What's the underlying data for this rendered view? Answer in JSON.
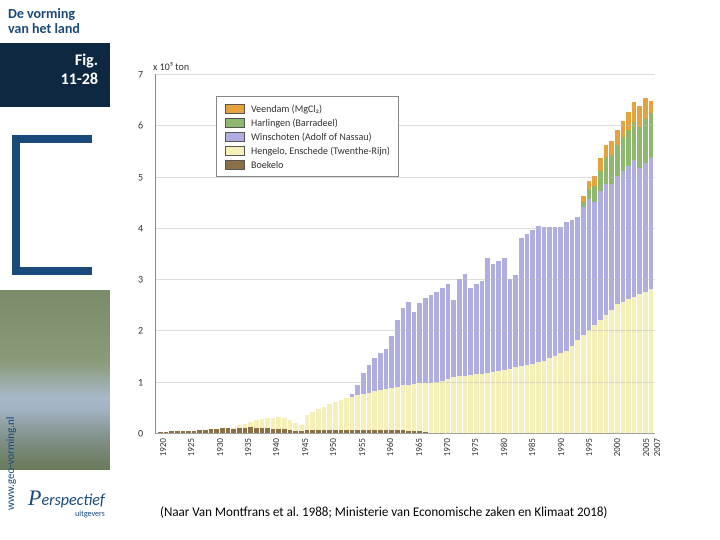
{
  "sidebar": {
    "header_line1": "De vorming",
    "header_line2": "van het land",
    "fig_label_line1": "Fig.",
    "fig_label_line2": "11-28",
    "url": "www.geo-vorming.nl",
    "logo_text": "erspectief",
    "logo_cap": "P",
    "logo_sub": "uitgevers"
  },
  "caption": "(Naar Van Montfrans et al. 1988; Ministerie van Economische zaken en Klimaat 2018)",
  "chart": {
    "type": "stacked-bar",
    "y_axis_label": "x 10⁵ ton",
    "ylim": [
      0,
      7
    ],
    "yticks": [
      0,
      1,
      2,
      3,
      4,
      5,
      6,
      7
    ],
    "x_start": 1920,
    "x_end": 2007,
    "xticks": [
      1920,
      1925,
      1930,
      1935,
      1940,
      1945,
      1950,
      1955,
      1960,
      1965,
      1970,
      1975,
      1980,
      1985,
      1990,
      1995,
      2000,
      2005,
      2007
    ],
    "colors": {
      "veendam": "#e6a23c",
      "harlingen": "#8fb86f",
      "winschoten": "#b0aee0",
      "hengelo": "#f5f0b8",
      "boekelo": "#8b6f47",
      "background": "#ffffff",
      "grid": "#bbbbbb",
      "axis": "#888888"
    },
    "series": [
      {
        "key": "veendam",
        "label": "Veendam (MgCl₂)"
      },
      {
        "key": "harlingen",
        "label": "Harlingen (Barradeel)"
      },
      {
        "key": "winschoten",
        "label": "Winschoten (Adolf of Nassau)"
      },
      {
        "key": "hengelo",
        "label": "Hengelo, Enschede (Twenthe-Rijn)"
      },
      {
        "key": "boekelo",
        "label": "Boekelo"
      }
    ],
    "data": [
      {
        "y": 1920,
        "b": 0.02,
        "h": 0,
        "w": 0,
        "ha": 0,
        "v": 0
      },
      {
        "y": 1921,
        "b": 0.02,
        "h": 0,
        "w": 0,
        "ha": 0,
        "v": 0
      },
      {
        "y": 1922,
        "b": 0.03,
        "h": 0,
        "w": 0,
        "ha": 0,
        "v": 0
      },
      {
        "y": 1923,
        "b": 0.03,
        "h": 0,
        "w": 0,
        "ha": 0,
        "v": 0
      },
      {
        "y": 1924,
        "b": 0.03,
        "h": 0,
        "w": 0,
        "ha": 0,
        "v": 0
      },
      {
        "y": 1925,
        "b": 0.04,
        "h": 0,
        "w": 0,
        "ha": 0,
        "v": 0
      },
      {
        "y": 1926,
        "b": 0.04,
        "h": 0,
        "w": 0,
        "ha": 0,
        "v": 0
      },
      {
        "y": 1927,
        "b": 0.05,
        "h": 0,
        "w": 0,
        "ha": 0,
        "v": 0
      },
      {
        "y": 1928,
        "b": 0.06,
        "h": 0,
        "w": 0,
        "ha": 0,
        "v": 0
      },
      {
        "y": 1929,
        "b": 0.07,
        "h": 0,
        "w": 0,
        "ha": 0,
        "v": 0
      },
      {
        "y": 1930,
        "b": 0.08,
        "h": 0,
        "w": 0,
        "ha": 0,
        "v": 0
      },
      {
        "y": 1931,
        "b": 0.09,
        "h": 0,
        "w": 0,
        "ha": 0,
        "v": 0
      },
      {
        "y": 1932,
        "b": 0.1,
        "h": 0,
        "w": 0,
        "ha": 0,
        "v": 0
      },
      {
        "y": 1933,
        "b": 0.08,
        "h": 0.02,
        "w": 0,
        "ha": 0,
        "v": 0
      },
      {
        "y": 1934,
        "b": 0.1,
        "h": 0.05,
        "w": 0,
        "ha": 0,
        "v": 0
      },
      {
        "y": 1935,
        "b": 0.1,
        "h": 0.08,
        "w": 0,
        "ha": 0,
        "v": 0
      },
      {
        "y": 1936,
        "b": 0.12,
        "h": 0.1,
        "w": 0,
        "ha": 0,
        "v": 0
      },
      {
        "y": 1937,
        "b": 0.1,
        "h": 0.15,
        "w": 0,
        "ha": 0,
        "v": 0
      },
      {
        "y": 1938,
        "b": 0.1,
        "h": 0.18,
        "w": 0,
        "ha": 0,
        "v": 0
      },
      {
        "y": 1939,
        "b": 0.1,
        "h": 0.2,
        "w": 0,
        "ha": 0,
        "v": 0
      },
      {
        "y": 1940,
        "b": 0.08,
        "h": 0.22,
        "w": 0,
        "ha": 0,
        "v": 0
      },
      {
        "y": 1941,
        "b": 0.08,
        "h": 0.23,
        "w": 0,
        "ha": 0,
        "v": 0
      },
      {
        "y": 1942,
        "b": 0.08,
        "h": 0.22,
        "w": 0,
        "ha": 0,
        "v": 0
      },
      {
        "y": 1943,
        "b": 0.06,
        "h": 0.2,
        "w": 0,
        "ha": 0,
        "v": 0
      },
      {
        "y": 1944,
        "b": 0.04,
        "h": 0.15,
        "w": 0,
        "ha": 0,
        "v": 0
      },
      {
        "y": 1945,
        "b": 0.04,
        "h": 0.12,
        "w": 0,
        "ha": 0,
        "v": 0
      },
      {
        "y": 1946,
        "b": 0.06,
        "h": 0.3,
        "w": 0,
        "ha": 0,
        "v": 0
      },
      {
        "y": 1947,
        "b": 0.06,
        "h": 0.35,
        "w": 0,
        "ha": 0,
        "v": 0
      },
      {
        "y": 1948,
        "b": 0.06,
        "h": 0.4,
        "w": 0,
        "ha": 0,
        "v": 0
      },
      {
        "y": 1949,
        "b": 0.06,
        "h": 0.45,
        "w": 0,
        "ha": 0,
        "v": 0
      },
      {
        "y": 1950,
        "b": 0.06,
        "h": 0.5,
        "w": 0,
        "ha": 0,
        "v": 0
      },
      {
        "y": 1951,
        "b": 0.06,
        "h": 0.55,
        "w": 0,
        "ha": 0,
        "v": 0
      },
      {
        "y": 1952,
        "b": 0.06,
        "h": 0.58,
        "w": 0,
        "ha": 0,
        "v": 0
      },
      {
        "y": 1953,
        "b": 0.06,
        "h": 0.62,
        "w": 0,
        "ha": 0,
        "v": 0
      },
      {
        "y": 1954,
        "b": 0.06,
        "h": 0.65,
        "w": 0.05,
        "ha": 0,
        "v": 0
      },
      {
        "y": 1955,
        "b": 0.06,
        "h": 0.68,
        "w": 0.2,
        "ha": 0,
        "v": 0
      },
      {
        "y": 1956,
        "b": 0.06,
        "h": 0.7,
        "w": 0.4,
        "ha": 0,
        "v": 0
      },
      {
        "y": 1957,
        "b": 0.06,
        "h": 0.72,
        "w": 0.55,
        "ha": 0,
        "v": 0
      },
      {
        "y": 1958,
        "b": 0.06,
        "h": 0.75,
        "w": 0.65,
        "ha": 0,
        "v": 0
      },
      {
        "y": 1959,
        "b": 0.06,
        "h": 0.78,
        "w": 0.72,
        "ha": 0,
        "v": 0
      },
      {
        "y": 1960,
        "b": 0.06,
        "h": 0.8,
        "w": 0.78,
        "ha": 0,
        "v": 0
      },
      {
        "y": 1961,
        "b": 0.06,
        "h": 0.82,
        "w": 1.0,
        "ha": 0,
        "v": 0
      },
      {
        "y": 1962,
        "b": 0.05,
        "h": 0.85,
        "w": 1.3,
        "ha": 0,
        "v": 0
      },
      {
        "y": 1963,
        "b": 0.05,
        "h": 0.88,
        "w": 1.5,
        "ha": 0,
        "v": 0
      },
      {
        "y": 1964,
        "b": 0.04,
        "h": 0.9,
        "w": 1.6,
        "ha": 0,
        "v": 0
      },
      {
        "y": 1965,
        "b": 0.04,
        "h": 0.92,
        "w": 1.4,
        "ha": 0,
        "v": 0
      },
      {
        "y": 1966,
        "b": 0.03,
        "h": 0.94,
        "w": 1.55,
        "ha": 0,
        "v": 0
      },
      {
        "y": 1967,
        "b": 0.02,
        "h": 0.95,
        "w": 1.65,
        "ha": 0,
        "v": 0
      },
      {
        "y": 1968,
        "b": 0,
        "h": 0.98,
        "w": 1.7,
        "ha": 0,
        "v": 0
      },
      {
        "y": 1969,
        "b": 0,
        "h": 1.0,
        "w": 1.75,
        "ha": 0,
        "v": 0
      },
      {
        "y": 1970,
        "b": 0,
        "h": 1.02,
        "w": 1.8,
        "ha": 0,
        "v": 0
      },
      {
        "y": 1971,
        "b": 0,
        "h": 1.05,
        "w": 1.85,
        "ha": 0,
        "v": 0
      },
      {
        "y": 1972,
        "b": 0,
        "h": 1.08,
        "w": 1.5,
        "ha": 0,
        "v": 0
      },
      {
        "y": 1973,
        "b": 0,
        "h": 1.1,
        "w": 1.9,
        "ha": 0,
        "v": 0
      },
      {
        "y": 1974,
        "b": 0,
        "h": 1.1,
        "w": 2.0,
        "ha": 0,
        "v": 0
      },
      {
        "y": 1975,
        "b": 0,
        "h": 1.12,
        "w": 1.7,
        "ha": 0,
        "v": 0
      },
      {
        "y": 1976,
        "b": 0,
        "h": 1.14,
        "w": 1.75,
        "ha": 0,
        "v": 0
      },
      {
        "y": 1977,
        "b": 0,
        "h": 1.15,
        "w": 1.8,
        "ha": 0,
        "v": 0
      },
      {
        "y": 1978,
        "b": 0,
        "h": 1.16,
        "w": 2.25,
        "ha": 0,
        "v": 0
      },
      {
        "y": 1979,
        "b": 0,
        "h": 1.18,
        "w": 2.1,
        "ha": 0,
        "v": 0
      },
      {
        "y": 1980,
        "b": 0,
        "h": 1.2,
        "w": 2.15,
        "ha": 0,
        "v": 0
      },
      {
        "y": 1981,
        "b": 0,
        "h": 1.22,
        "w": 2.18,
        "ha": 0,
        "v": 0
      },
      {
        "y": 1982,
        "b": 0,
        "h": 1.25,
        "w": 1.75,
        "ha": 0,
        "v": 0
      },
      {
        "y": 1983,
        "b": 0,
        "h": 1.28,
        "w": 1.8,
        "ha": 0,
        "v": 0
      },
      {
        "y": 1984,
        "b": 0,
        "h": 1.3,
        "w": 2.5,
        "ha": 0,
        "v": 0
      },
      {
        "y": 1985,
        "b": 0,
        "h": 1.32,
        "w": 2.55,
        "ha": 0,
        "v": 0
      },
      {
        "y": 1986,
        "b": 0,
        "h": 1.35,
        "w": 2.6,
        "ha": 0,
        "v": 0
      },
      {
        "y": 1987,
        "b": 0,
        "h": 1.38,
        "w": 2.65,
        "ha": 0,
        "v": 0
      },
      {
        "y": 1988,
        "b": 0,
        "h": 1.4,
        "w": 2.6,
        "ha": 0,
        "v": 0
      },
      {
        "y": 1989,
        "b": 0,
        "h": 1.45,
        "w": 2.55,
        "ha": 0,
        "v": 0
      },
      {
        "y": 1990,
        "b": 0,
        "h": 1.5,
        "w": 2.5,
        "ha": 0,
        "v": 0
      },
      {
        "y": 1991,
        "b": 0,
        "h": 1.55,
        "w": 2.45,
        "ha": 0,
        "v": 0
      },
      {
        "y": 1992,
        "b": 0,
        "h": 1.6,
        "w": 2.5,
        "ha": 0,
        "v": 0
      },
      {
        "y": 1993,
        "b": 0,
        "h": 1.7,
        "w": 2.45,
        "ha": 0,
        "v": 0
      },
      {
        "y": 1994,
        "b": 0,
        "h": 1.8,
        "w": 2.4,
        "ha": 0,
        "v": 0
      },
      {
        "y": 1995,
        "b": 0,
        "h": 1.9,
        "w": 2.5,
        "ha": 0.1,
        "v": 0.1
      },
      {
        "y": 1996,
        "b": 0,
        "h": 2.0,
        "w": 2.55,
        "ha": 0.2,
        "v": 0.15
      },
      {
        "y": 1997,
        "b": 0,
        "h": 2.1,
        "w": 2.4,
        "ha": 0.3,
        "v": 0.2
      },
      {
        "y": 1998,
        "b": 0,
        "h": 2.2,
        "w": 2.5,
        "ha": 0.4,
        "v": 0.25
      },
      {
        "y": 1999,
        "b": 0,
        "h": 2.3,
        "w": 2.55,
        "ha": 0.5,
        "v": 0.25
      },
      {
        "y": 2000,
        "b": 0,
        "h": 2.4,
        "w": 2.45,
        "ha": 0.55,
        "v": 0.28
      },
      {
        "y": 2001,
        "b": 0,
        "h": 2.5,
        "w": 2.5,
        "ha": 0.6,
        "v": 0.3
      },
      {
        "y": 2002,
        "b": 0,
        "h": 2.55,
        "w": 2.55,
        "ha": 0.65,
        "v": 0.32
      },
      {
        "y": 2003,
        "b": 0,
        "h": 2.6,
        "w": 2.6,
        "ha": 0.7,
        "v": 0.35
      },
      {
        "y": 2004,
        "b": 0,
        "h": 2.65,
        "w": 2.65,
        "ha": 0.75,
        "v": 0.38
      },
      {
        "y": 2005,
        "b": 0,
        "h": 2.7,
        "w": 2.45,
        "ha": 0.8,
        "v": 0.4
      },
      {
        "y": 2006,
        "b": 0,
        "h": 2.75,
        "w": 2.5,
        "ha": 0.85,
        "v": 0.42
      },
      {
        "y": 2007,
        "b": 0,
        "h": 2.8,
        "w": 2.55,
        "ha": 0.88,
        "v": 0.22
      }
    ]
  }
}
